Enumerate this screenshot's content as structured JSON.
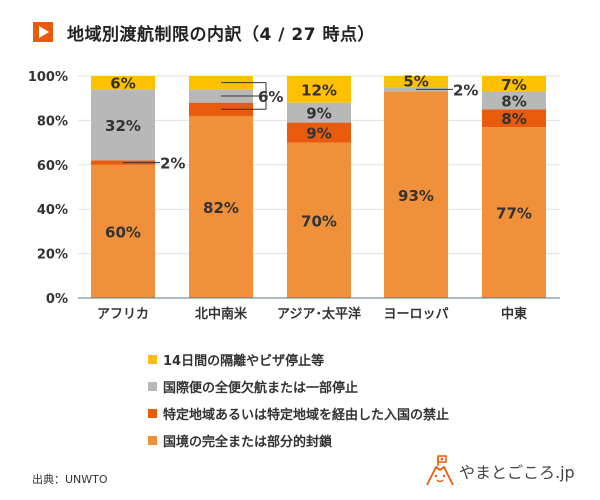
{
  "title": "地域別渡航制限の内訳（4 / 27 時点）",
  "source": "出典：UNWTO",
  "logo_text": "やまとごころ.jp",
  "chart_data": {
    "type": "bar",
    "stacked": true,
    "title": "地域別渡航制限の内訳（4 / 27 時点）",
    "xlabel": "",
    "ylabel": "",
    "ylim": [
      0,
      100
    ],
    "yticks": [
      "0%",
      "20%",
      "40%",
      "60%",
      "80%",
      "100%"
    ],
    "grid": true,
    "legend_position": "bottom",
    "categories": [
      "アフリカ",
      "北中南米",
      "アジア･太平洋",
      "ヨーロッパ",
      "中東"
    ],
    "series": [
      {
        "name": "国境の完全または部分的封鎖",
        "color": "#f0903a",
        "values": [
          60,
          82,
          70,
          93,
          77
        ],
        "labels": [
          "60%",
          "82%",
          "70%",
          "93%",
          "77%"
        ]
      },
      {
        "name": "特定地域あるいは特定地域を経由した入国の禁止",
        "color": "#e85a0c",
        "values": [
          2,
          6,
          9,
          0,
          8
        ],
        "labels": [
          "2%",
          "6%",
          "9%",
          "",
          "8%"
        ]
      },
      {
        "name": "国際便の全便欠航または一部停止",
        "color": "#b8b8b8",
        "values": [
          32,
          6,
          9,
          2,
          8
        ],
        "labels": [
          "32%",
          "6%",
          "9%",
          "2%",
          "8%"
        ]
      },
      {
        "name": "14日間の隔離やビザ停止等",
        "color": "#ffc000",
        "values": [
          6,
          6,
          12,
          5,
          7
        ],
        "labels": [
          "6%",
          "6%",
          "12%",
          "5%",
          "7%"
        ]
      }
    ],
    "legend_order": [
      "14日間の隔離やビザ停止等",
      "国際便の全便欠航または一部停止",
      "特定地域あるいは特定地域を経由した入国の禁止",
      "国境の完全または部分的封鎖"
    ]
  }
}
